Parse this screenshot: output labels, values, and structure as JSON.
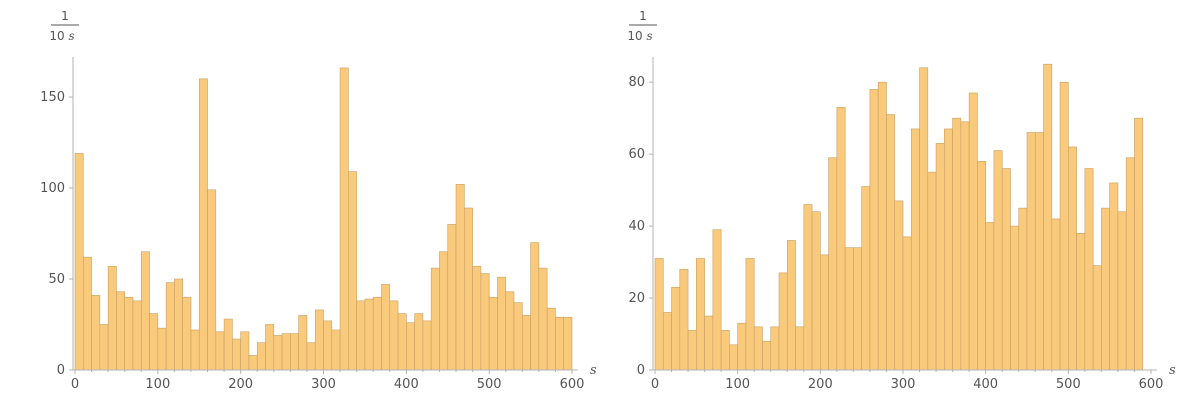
{
  "chart_data": [
    {
      "type": "bar",
      "ylabel_numerator": "1",
      "ylabel_denominator_num": "10",
      "ylabel_denominator_unit": "s",
      "xlabel": "s",
      "bin_width": 10,
      "xlim": [
        0,
        600
      ],
      "ylim": [
        0,
        172
      ],
      "xticks": [
        0,
        100,
        200,
        300,
        400,
        500,
        600
      ],
      "yticks": [
        0,
        50,
        100,
        150
      ],
      "color": "#f9c97c",
      "edge_color": "#c9a062",
      "values": [
        119,
        62,
        41,
        25,
        57,
        43,
        40,
        38,
        65,
        31,
        23,
        48,
        50,
        40,
        22,
        160,
        99,
        21,
        28,
        17,
        21,
        8,
        15,
        25,
        19,
        20,
        20,
        30,
        15,
        33,
        27,
        22,
        166,
        109,
        38,
        39,
        40,
        47,
        38,
        31,
        26,
        31,
        27,
        56,
        65,
        80,
        102,
        89,
        57,
        53,
        40,
        51,
        43,
        37,
        30,
        70,
        56,
        34,
        29,
        29
      ]
    },
    {
      "type": "bar",
      "ylabel_numerator": "1",
      "ylabel_denominator_num": "10",
      "ylabel_denominator_unit": "s",
      "xlabel": "s",
      "bin_width": 10,
      "xlim": [
        0,
        600
      ],
      "ylim": [
        0,
        87
      ],
      "xticks": [
        0,
        100,
        200,
        300,
        400,
        500,
        600
      ],
      "yticks": [
        0,
        20,
        40,
        60,
        80
      ],
      "color": "#f9c97c",
      "edge_color": "#c9a062",
      "values": [
        31,
        16,
        23,
        28,
        11,
        31,
        15,
        39,
        11,
        7,
        13,
        31,
        12,
        8,
        12,
        27,
        36,
        12,
        46,
        44,
        32,
        59,
        73,
        34,
        34,
        51,
        78,
        80,
        71,
        47,
        37,
        67,
        84,
        55,
        63,
        67,
        70,
        69,
        77,
        58,
        41,
        61,
        56,
        40,
        45,
        66,
        66,
        85,
        42,
        80,
        62,
        38,
        56,
        29,
        45,
        52,
        44,
        59,
        70
      ]
    }
  ]
}
